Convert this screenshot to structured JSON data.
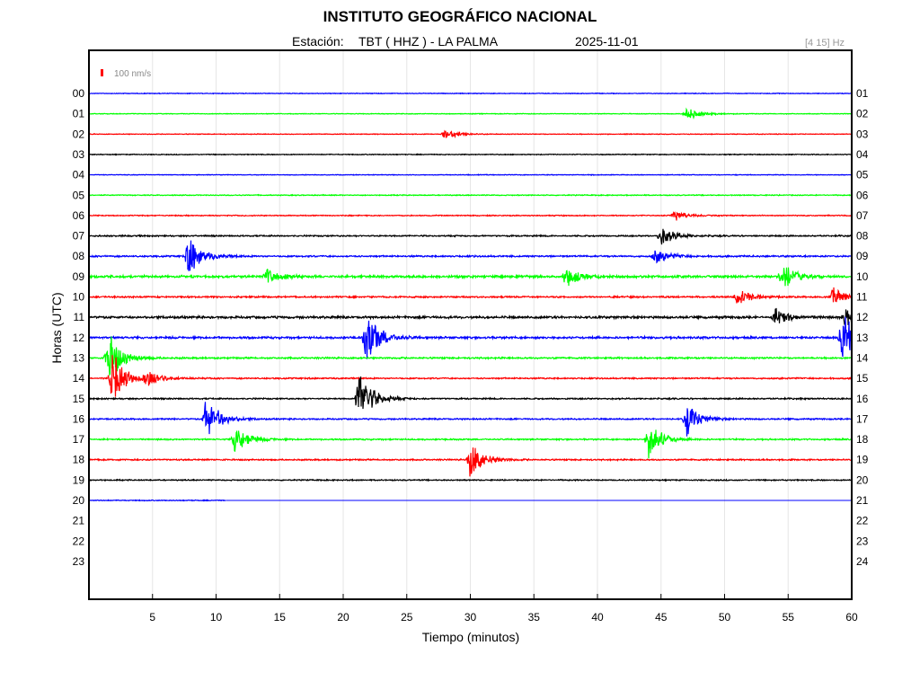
{
  "header": {
    "title": "INSTITUTO GEOGRÁFICO NACIONAL",
    "station_label": "Estación:",
    "station": "TBT ( HHZ ) - LA PALMA",
    "date": "2025-11-01",
    "frequency": "[4 15] Hz"
  },
  "chart_data": {
    "type": "line",
    "title": "INSTITUTO GEOGRÁFICO NACIONAL",
    "xlabel": "Tiempo (minutos)",
    "ylabel": "Horas (UTC)",
    "xlim": [
      0,
      60
    ],
    "x_ticks": [
      "5",
      "10",
      "15",
      "20",
      "25",
      "30",
      "35",
      "40",
      "45",
      "50",
      "55",
      "60"
    ],
    "left_labels": [
      "00",
      "01",
      "02",
      "03",
      "04",
      "05",
      "06",
      "07",
      "08",
      "09",
      "10",
      "11",
      "12",
      "13",
      "14",
      "15",
      "16",
      "17",
      "18",
      "19",
      "20",
      "21",
      "22",
      "23"
    ],
    "right_labels": [
      "01",
      "02",
      "03",
      "04",
      "05",
      "06",
      "07",
      "08",
      "09",
      "10",
      "11",
      "12",
      "13",
      "14",
      "15",
      "16",
      "17",
      "18",
      "19",
      "20",
      "21",
      "22",
      "23",
      "24"
    ],
    "scale_label": "100 nm/s",
    "grid": "vertical",
    "colors": [
      "#0000ff",
      "#00ff00",
      "#ff0000",
      "#000000"
    ],
    "traces": [
      {
        "hour": "00",
        "noise": 0.15,
        "end_min": 60,
        "events": []
      },
      {
        "hour": "01",
        "noise": 0.15,
        "end_min": 60,
        "events": [
          {
            "t": 47,
            "amp": 0.5
          }
        ]
      },
      {
        "hour": "02",
        "noise": 0.15,
        "end_min": 60,
        "events": [
          {
            "t": 28,
            "amp": 0.4
          }
        ]
      },
      {
        "hour": "03",
        "noise": 0.18,
        "end_min": 60,
        "events": []
      },
      {
        "hour": "04",
        "noise": 0.15,
        "end_min": 60,
        "events": []
      },
      {
        "hour": "05",
        "noise": 0.2,
        "end_min": 60,
        "events": []
      },
      {
        "hour": "06",
        "noise": 0.22,
        "end_min": 60,
        "events": [
          {
            "t": 46,
            "amp": 0.4
          }
        ]
      },
      {
        "hour": "07",
        "noise": 0.3,
        "end_min": 60,
        "events": [
          {
            "t": 45,
            "amp": 0.8
          }
        ]
      },
      {
        "hour": "08",
        "noise": 0.35,
        "end_min": 60,
        "events": [
          {
            "t": 7.8,
            "amp": 1.5
          },
          {
            "t": 44.5,
            "amp": 0.6
          }
        ]
      },
      {
        "hour": "09",
        "noise": 0.5,
        "end_min": 60,
        "events": [
          {
            "t": 14,
            "amp": 0.6
          },
          {
            "t": 37.5,
            "amp": 0.9
          },
          {
            "t": 54.5,
            "amp": 1.1
          }
        ]
      },
      {
        "hour": "10",
        "noise": 0.35,
        "end_min": 60,
        "events": [
          {
            "t": 51,
            "amp": 0.6
          },
          {
            "t": 58.5,
            "amp": 0.7
          }
        ]
      },
      {
        "hour": "11",
        "noise": 0.5,
        "end_min": 60,
        "events": [
          {
            "t": 54,
            "amp": 0.7
          },
          {
            "t": 59.5,
            "amp": 0.8
          }
        ]
      },
      {
        "hour": "12",
        "noise": 0.45,
        "end_min": 60,
        "events": [
          {
            "t": 21.8,
            "amp": 2.0
          },
          {
            "t": 59.2,
            "amp": 2.0
          }
        ]
      },
      {
        "hour": "13",
        "noise": 0.35,
        "end_min": 60,
        "events": [
          {
            "t": 1.5,
            "amp": 2.0
          }
        ]
      },
      {
        "hour": "14",
        "noise": 0.3,
        "end_min": 60,
        "events": [
          {
            "t": 1.8,
            "amp": 2.0
          },
          {
            "t": 4.5,
            "amp": 0.6
          }
        ]
      },
      {
        "hour": "15",
        "noise": 0.3,
        "end_min": 60,
        "events": [
          {
            "t": 21.2,
            "amp": 2.2
          }
        ]
      },
      {
        "hour": "16",
        "noise": 0.3,
        "end_min": 60,
        "events": [
          {
            "t": 9.2,
            "amp": 1.8
          },
          {
            "t": 47,
            "amp": 1.2
          }
        ]
      },
      {
        "hour": "17",
        "noise": 0.3,
        "end_min": 60,
        "events": [
          {
            "t": 11.5,
            "amp": 1.2
          },
          {
            "t": 44,
            "amp": 1.4
          }
        ]
      },
      {
        "hour": "18",
        "noise": 0.3,
        "end_min": 60,
        "events": [
          {
            "t": 30,
            "amp": 1.5
          }
        ]
      },
      {
        "hour": "19",
        "noise": 0.25,
        "end_min": 60,
        "events": []
      },
      {
        "hour": "20",
        "noise": 0.2,
        "end_min": 10.8,
        "events": []
      }
    ]
  }
}
